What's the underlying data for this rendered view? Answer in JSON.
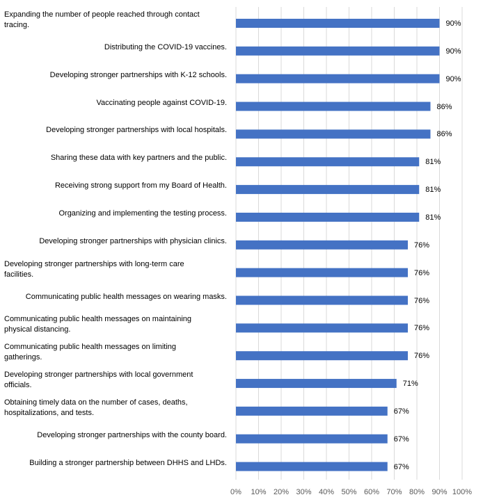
{
  "chart_data": {
    "type": "bar",
    "orientation": "horizontal",
    "categories": [
      "Expanding the number of people reached through contact tracing.",
      "Distributing the COVID-19 vaccines.",
      "Developing stronger partnerships with K-12 schools.",
      "Vaccinating people against COVID-19.",
      "Developing stronger partnerships with local hospitals.",
      "Sharing these data with key partners and the public.",
      "Receiving strong support from my Board of Health.",
      "Organizing and implementing the testing process.",
      "Developing stronger partnerships with physician clinics.",
      "Developing stronger partnerships with long-term care facilities.",
      "Communicating public health messages on wearing masks.",
      "Communicating public health messages on maintaining physical distancing.",
      "Communicating public health messages on limiting gatherings.",
      "Developing stronger partnerships with local government officials.",
      "Obtaining timely data on the number of cases, deaths, hospitalizations, and tests.",
      "Developing stronger partnerships with the county board.",
      "Building a stronger partnership between DHHS and LHDs."
    ],
    "category_lines": [
      [
        "Expanding the number of people reached through contact",
        "tracing."
      ],
      [
        "Distributing the COVID-19 vaccines."
      ],
      [
        "Developing stronger partnerships with K-12 schools."
      ],
      [
        "Vaccinating people against COVID-19."
      ],
      [
        "Developing stronger partnerships with local hospitals."
      ],
      [
        "Sharing these data with key partners and the public."
      ],
      [
        "Receiving strong support from my Board of Health."
      ],
      [
        "Organizing and implementing the testing process."
      ],
      [
        "Developing stronger partnerships with physician clinics."
      ],
      [
        "Developing stronger partnerships with long-term care",
        "facilities."
      ],
      [
        "Communicating public health messages on wearing masks."
      ],
      [
        "Communicating public health messages on maintaining",
        "physical distancing."
      ],
      [
        "Communicating public health messages on limiting",
        "gatherings."
      ],
      [
        "Developing stronger partnerships with local government",
        "officials."
      ],
      [
        "Obtaining timely data on the number of cases, deaths,",
        "hospitalizations, and tests."
      ],
      [
        "Developing stronger partnerships with the county board."
      ],
      [
        "Building a stronger partnership between DHHS and LHDs."
      ]
    ],
    "values": [
      90,
      90,
      90,
      86,
      86,
      81,
      81,
      81,
      76,
      76,
      76,
      76,
      76,
      71,
      67,
      67,
      67
    ],
    "value_labels": [
      "90%",
      "90%",
      "90%",
      "86%",
      "86%",
      "81%",
      "81%",
      "81%",
      "76%",
      "76%",
      "76%",
      "76%",
      "76%",
      "71%",
      "67%",
      "67%",
      "67%"
    ],
    "xlim": [
      0,
      100
    ],
    "x_ticks": [
      "0%",
      "10%",
      "20%",
      "30%",
      "40%",
      "50%",
      "60%",
      "70%",
      "80%",
      "90%",
      "100%"
    ],
    "gridlines": true,
    "legend": false,
    "bar_color": "#4472C4",
    "gridline_color": "#D9D9D9"
  }
}
